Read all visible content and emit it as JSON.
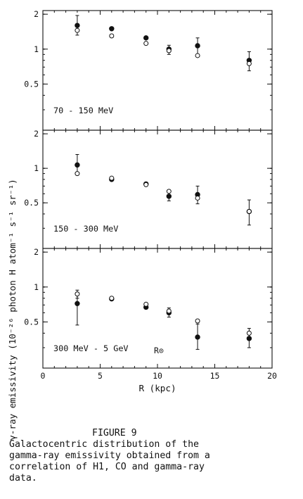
{
  "figure": {
    "y_axis_label": "γ-ray emissivity (10⁻²⁶ photon H atom⁻¹ s⁻¹ sr⁻¹)",
    "x_axis_label": "R (kpc)",
    "solar_radius_label": "R⊙",
    "caption_heading": "FIGURE 9",
    "caption_lines": [
      "Galactocentric distribution of the",
      "gamma-ray emissivity obtained from a",
      "correlation of H1, CO and gamma-ray",
      "data."
    ]
  },
  "chart_data": [
    {
      "type": "scatter",
      "panel_label": "70 - 150 MeV",
      "xlim": [
        0,
        20
      ],
      "ylim": [
        0.2,
        2.15
      ],
      "y_scale": "log",
      "x_ticks": [
        0,
        5,
        10,
        15,
        20
      ],
      "y_ticks": [
        "0.5",
        "1",
        "2"
      ],
      "series": [
        {
          "marker": "filled-circle",
          "x": [
            3,
            6,
            9,
            11,
            13.5,
            18
          ],
          "y": [
            1.6,
            1.5,
            1.25,
            1.0,
            1.07,
            0.8
          ],
          "y_err_low": [
            1.32,
            null,
            null,
            0.9,
            0.9,
            0.65
          ],
          "y_err_high": [
            1.95,
            null,
            null,
            1.08,
            1.25,
            0.95
          ]
        },
        {
          "marker": "open-circle",
          "x": [
            3,
            6,
            9,
            11,
            13.5,
            18
          ],
          "y": [
            1.45,
            1.3,
            1.12,
            0.97,
            0.88,
            0.75
          ]
        }
      ]
    },
    {
      "type": "scatter",
      "panel_label": "150 - 300 MeV",
      "xlim": [
        0,
        20
      ],
      "ylim": [
        0.2,
        2.15
      ],
      "y_scale": "log",
      "y_ticks": [
        "0.5",
        "1",
        "2"
      ],
      "series": [
        {
          "marker": "filled-circle",
          "x": [
            3,
            6,
            9,
            11,
            13.5,
            18
          ],
          "y": [
            1.07,
            0.8,
            0.73,
            0.57,
            0.59,
            0.42
          ],
          "y_err_low": [
            0.9,
            null,
            null,
            0.52,
            0.49,
            0.32
          ],
          "y_err_high": [
            1.32,
            null,
            null,
            0.64,
            0.7,
            0.53
          ]
        },
        {
          "marker": "open-circle",
          "x": [
            3,
            6,
            9,
            11,
            13.5,
            18
          ],
          "y": [
            0.9,
            0.82,
            0.72,
            0.63,
            0.55,
            0.42
          ]
        }
      ]
    },
    {
      "type": "scatter",
      "panel_label": "300 MeV - 5 GeV",
      "xlabel": "R (kpc)",
      "xlim": [
        0,
        20
      ],
      "ylim": [
        0.2,
        2.15
      ],
      "y_scale": "log",
      "x_ticks": [
        0,
        5,
        10,
        15,
        20
      ],
      "y_ticks": [
        "0.5",
        "1",
        "2"
      ],
      "series": [
        {
          "marker": "filled-circle",
          "x": [
            3,
            6,
            9,
            11,
            13.5,
            18
          ],
          "y": [
            0.72,
            0.79,
            0.67,
            0.6,
            0.37,
            0.36
          ],
          "y_err_low": [
            0.47,
            null,
            null,
            0.55,
            0.29,
            0.3
          ],
          "y_err_high": [
            0.9,
            null,
            null,
            0.66,
            0.48,
            0.44
          ]
        },
        {
          "marker": "open-circle",
          "x": [
            3,
            6,
            9,
            11,
            13.5,
            18
          ],
          "y": [
            0.87,
            0.8,
            0.71,
            0.62,
            0.51,
            0.4
          ],
          "y_err_low": [
            0.8,
            null,
            null,
            null,
            null,
            null
          ],
          "y_err_high": [
            0.94,
            null,
            null,
            null,
            null,
            null
          ]
        }
      ]
    }
  ]
}
